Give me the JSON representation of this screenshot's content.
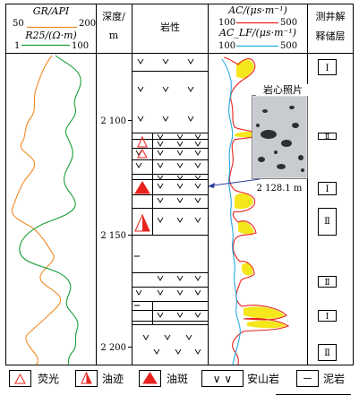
{
  "header": {
    "gr_label": "GR/API",
    "gr_min": "50",
    "gr_max": "200",
    "r25_label": "R25/(Ω·m)",
    "r25_min": "1",
    "r25_max": "100",
    "depth_label_1": "深度/",
    "depth_label_2": "m",
    "lith_label": "岩性",
    "ac_label": "AC/(μs·m⁻¹)",
    "ac_min": "100",
    "ac_max": "500",
    "aclf_label": "AC_LF/(μs·m⁻¹)",
    "aclf_min": "100",
    "aclf_max": "500",
    "interp_label_1": "测井解",
    "interp_label_2": "释储层"
  },
  "depth_ticks": [
    "2 100",
    "2 150",
    "2 200"
  ],
  "core_photo": {
    "title": "岩心照片",
    "depth": "2 128.1 m"
  },
  "interp_layers": [
    "Ⅰ",
    "Ⅱ",
    "Ⅰ",
    "Ⅱ",
    "Ⅱ",
    "Ⅰ",
    "Ⅱ"
  ],
  "legend": {
    "fluorescence": "荧光",
    "oil_trace": "油迹",
    "oil_spot": "油斑",
    "andesite_symbol": "∨ ∨",
    "andesite": "安山岩",
    "mudstone_symbol": "－",
    "mudstone": "泥岩"
  },
  "colors": {
    "gr": "#f08a24",
    "r25": "#1a9e3a",
    "ac": "#e8231e",
    "aclf": "#29a9e0",
    "fill": "#f5e71c",
    "oil": "#e8231e"
  }
}
